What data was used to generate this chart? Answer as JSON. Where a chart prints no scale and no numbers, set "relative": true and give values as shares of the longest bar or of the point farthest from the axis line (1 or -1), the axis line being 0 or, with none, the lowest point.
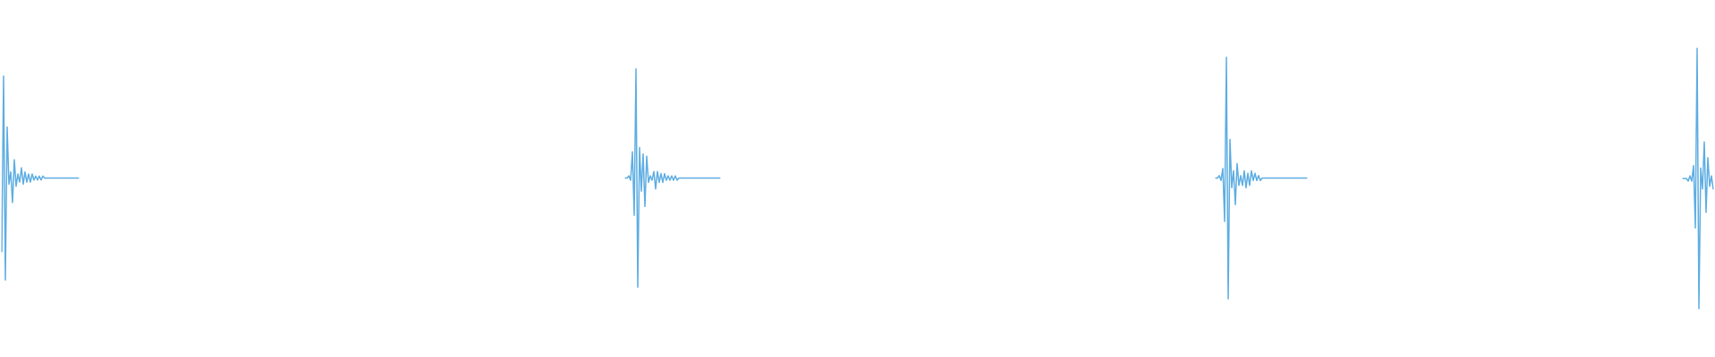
{
  "chart_data": [
    {
      "type": "line",
      "relative": true,
      "color": "#5dade2",
      "categories": [
        null,
        null,
        null,
        null,
        null,
        null,
        null,
        null,
        null,
        null,
        null,
        null,
        null,
        null,
        null,
        null,
        null,
        null,
        null,
        null,
        null,
        null,
        null,
        null,
        null,
        null,
        null,
        null,
        null,
        null,
        null,
        null,
        null,
        null,
        null,
        null,
        null,
        null,
        null,
        null,
        null,
        null,
        null,
        null
      ],
      "values": [
        0.14,
        1,
        0,
        0.75,
        0.47,
        0.53,
        0.38,
        0.59,
        0.46,
        0.52,
        0.48,
        0.55,
        0.47,
        0.53,
        0.48,
        0.52,
        0.48,
        0.52,
        0.49,
        0.51,
        0.49,
        0.51,
        0.49,
        0.51,
        0.5,
        0.5,
        0.5,
        0.5,
        0.5,
        0.5,
        0.5,
        0.5,
        0.5,
        0.5,
        0.5,
        0.5,
        0.5,
        0.5,
        0.5,
        0.5,
        0.5,
        0.5,
        0.5,
        0.5
      ]
    },
    {
      "type": "line",
      "relative": true,
      "color": "#5dade2",
      "categories": [
        null,
        null,
        null,
        null,
        null,
        null,
        null,
        null,
        null,
        null,
        null,
        null,
        null,
        null,
        null,
        null,
        null,
        null,
        null,
        null,
        null,
        null,
        null,
        null,
        null,
        null,
        null,
        null,
        null,
        null,
        null,
        null,
        null,
        null,
        null,
        null,
        null,
        null,
        null,
        null,
        null,
        null,
        null,
        null,
        null,
        null,
        null,
        null,
        null,
        null,
        null,
        null,
        null,
        null
      ],
      "values": [
        0.5,
        0.5,
        0.51,
        0.49,
        0.62,
        0.33,
        1,
        0,
        0.64,
        0.44,
        0.61,
        0.37,
        0.6,
        0.48,
        0.51,
        0.49,
        0.53,
        0.45,
        0.53,
        0.48,
        0.52,
        0.48,
        0.52,
        0.49,
        0.51,
        0.49,
        0.51,
        0.49,
        0.51,
        0.49,
        0.5,
        0.5,
        0.5,
        0.5,
        0.5,
        0.5,
        0.5,
        0.5,
        0.5,
        0.5,
        0.5,
        0.5,
        0.5,
        0.5,
        0.5,
        0.5,
        0.5,
        0.5,
        0.5,
        0.5,
        0.5,
        0.5,
        0.5,
        0.5
      ]
    },
    {
      "type": "line",
      "relative": true,
      "color": "#5dade2",
      "categories": [
        null,
        null,
        null,
        null,
        null,
        null,
        null,
        null,
        null,
        null,
        null,
        null,
        null,
        null,
        null,
        null,
        null,
        null,
        null,
        null,
        null,
        null,
        null,
        null,
        null,
        null,
        null,
        null,
        null,
        null,
        null,
        null,
        null,
        null,
        null,
        null,
        null,
        null,
        null,
        null,
        null,
        null,
        null,
        null,
        null,
        null,
        null,
        null,
        null,
        null,
        null,
        null
      ],
      "values": [
        0.5,
        0.5,
        0.51,
        0.49,
        0.54,
        0.32,
        1,
        0,
        0.66,
        0.46,
        0.53,
        0.39,
        0.56,
        0.47,
        0.51,
        0.47,
        0.53,
        0.46,
        0.52,
        0.47,
        0.53,
        0.49,
        0.52,
        0.49,
        0.51,
        0.49,
        0.5,
        0.5,
        0.5,
        0.5,
        0.5,
        0.5,
        0.5,
        0.5,
        0.5,
        0.5,
        0.5,
        0.5,
        0.5,
        0.5,
        0.5,
        0.5,
        0.5,
        0.5,
        0.5,
        0.5,
        0.5,
        0.5,
        0.5,
        0.5,
        0.5,
        0.5
      ]
    },
    {
      "type": "line",
      "relative": true,
      "color": "#5dade2",
      "categories": [
        null,
        null,
        null,
        null,
        null,
        null,
        null,
        null,
        null,
        null,
        null,
        null,
        null,
        null,
        null,
        null,
        null,
        null
      ],
      "values": [
        0.5,
        0.5,
        0.5,
        0.49,
        0.51,
        0.49,
        0.55,
        0.31,
        1,
        0,
        0.54,
        0.46,
        0.64,
        0.37,
        0.58,
        0.47,
        0.51,
        0.46
      ]
    }
  ]
}
